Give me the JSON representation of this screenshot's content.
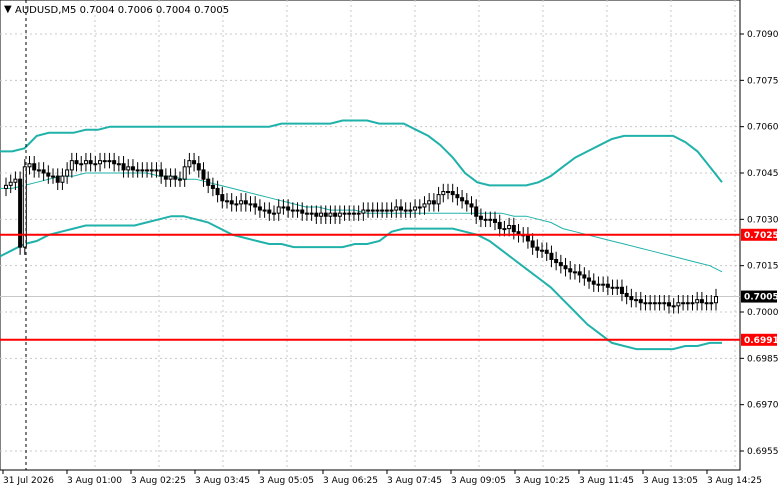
{
  "header": {
    "symbol_line": "AUDUSD,M5  0.7004 0.7006 0.7004 0.7005"
  },
  "colors": {
    "background": "#ffffff",
    "grid": "#c8c8c8",
    "band": "#20b2aa",
    "level": "#ff0000",
    "candle": "#000000",
    "price_tag_bg": "#000000",
    "price_tag_fg": "#ffffff",
    "level_tag_bg": "#ff0000",
    "level_tag_fg": "#ffffff"
  },
  "chart_data": {
    "type": "candlestick",
    "symbol": "AUDUSD",
    "timeframe": "M5",
    "ohlc_header": {
      "open": 0.7004,
      "high": 0.7006,
      "low": 0.7004,
      "close": 0.7005
    },
    "grid": true,
    "ylim": [
      0.694,
      0.71
    ],
    "y_ticks": [
      "0.7090",
      "0.7075",
      "0.7060",
      "0.7045",
      "0.7030",
      "0.7015",
      "0.7000",
      "0.6985",
      "0.6970",
      "0.6955"
    ],
    "x_ticks": [
      "31 Jul 2026",
      "3 Aug 01:00",
      "3 Aug 02:25",
      "3 Aug 03:45",
      "3 Aug 05:05",
      "3 Aug 06:25",
      "3 Aug 07:45",
      "3 Aug 09:05",
      "3 Aug 10:25",
      "3 Aug 11:45",
      "3 Aug 13:05",
      "3 Aug 14:25"
    ],
    "current_price": "0.7005",
    "horizontal_levels": [
      {
        "price": 0.7025,
        "label": "0.7025"
      },
      {
        "price": 0.6991,
        "label": "0.6991"
      }
    ],
    "close_series": [
      0.7041,
      0.7042,
      0.7043,
      0.7021,
      0.7047,
      0.7048,
      0.7046,
      0.7046,
      0.7045,
      0.7044,
      0.7044,
      0.7042,
      0.7044,
      0.7046,
      0.7049,
      0.7048,
      0.7048,
      0.7049,
      0.7048,
      0.7048,
      0.7049,
      0.7049,
      0.7049,
      0.7048,
      0.7048,
      0.7046,
      0.7047,
      0.7046,
      0.7046,
      0.7046,
      0.7046,
      0.7046,
      0.7046,
      0.7044,
      0.7043,
      0.7044,
      0.7043,
      0.7043,
      0.7047,
      0.7049,
      0.7048,
      0.7046,
      0.7043,
      0.7041,
      0.704,
      0.7038,
      0.7036,
      0.7036,
      0.7035,
      0.7035,
      0.7036,
      0.7035,
      0.7035,
      0.7034,
      0.7033,
      0.7033,
      0.7032,
      0.7032,
      0.7034,
      0.7034,
      0.7033,
      0.7033,
      0.7033,
      0.7032,
      0.7032,
      0.7032,
      0.7031,
      0.7032,
      0.7031,
      0.7032,
      0.7031,
      0.7032,
      0.7032,
      0.7032,
      0.7032,
      0.7032,
      0.7033,
      0.7033,
      0.7033,
      0.7033,
      0.7033,
      0.7033,
      0.7033,
      0.7034,
      0.7033,
      0.7033,
      0.7033,
      0.7034,
      0.7034,
      0.7035,
      0.7036,
      0.7035,
      0.7038,
      0.7039,
      0.7039,
      0.7038,
      0.7037,
      0.7036,
      0.7035,
      0.7034,
      0.7031,
      0.703,
      0.703,
      0.703,
      0.7029,
      0.7027,
      0.7027,
      0.7028,
      0.7026,
      0.7025,
      0.7025,
      0.7023,
      0.7021,
      0.702,
      0.702,
      0.7019,
      0.7017,
      0.7016,
      0.7015,
      0.7014,
      0.7013,
      0.7013,
      0.7012,
      0.7011,
      0.701,
      0.7009,
      0.7009,
      0.7009,
      0.7008,
      0.7008,
      0.7008,
      0.7006,
      0.7005,
      0.7004,
      0.7004,
      0.7003,
      0.7003,
      0.7003,
      0.7003,
      0.7003,
      0.7003,
      0.7002,
      0.7002,
      0.7003,
      0.7003,
      0.7003,
      0.7003,
      0.7004,
      0.7003,
      0.7003,
      0.7003,
      0.7005
    ],
    "bands": {
      "upper": [
        0.7052,
        0.7052,
        0.7053,
        0.7057,
        0.7058,
        0.7058,
        0.7058,
        0.7059,
        0.7059,
        0.706,
        0.706,
        0.706,
        0.706,
        0.706,
        0.706,
        0.706,
        0.706,
        0.706,
        0.706,
        0.706,
        0.706,
        0.706,
        0.706,
        0.7061,
        0.7061,
        0.7061,
        0.7061,
        0.7061,
        0.7062,
        0.7062,
        0.7062,
        0.7061,
        0.7061,
        0.7061,
        0.7059,
        0.7057,
        0.7054,
        0.705,
        0.7045,
        0.7042,
        0.7041,
        0.7041,
        0.7041,
        0.7041,
        0.7042,
        0.7044,
        0.7047,
        0.705,
        0.7052,
        0.7054,
        0.7056,
        0.7057,
        0.7057,
        0.7057,
        0.7057,
        0.7057,
        0.7055,
        0.7052,
        0.7047,
        0.7042
      ],
      "middle": [
        0.704,
        0.704,
        0.7041,
        0.7042,
        0.7043,
        0.7044,
        0.7044,
        0.7045,
        0.7045,
        0.7045,
        0.7045,
        0.7045,
        0.7045,
        0.7044,
        0.7044,
        0.7043,
        0.7043,
        0.7042,
        0.7041,
        0.704,
        0.7039,
        0.7038,
        0.7037,
        0.7036,
        0.7035,
        0.7034,
        0.7034,
        0.7033,
        0.7033,
        0.7033,
        0.7032,
        0.7032,
        0.7032,
        0.7032,
        0.7032,
        0.7032,
        0.7032,
        0.7032,
        0.7032,
        0.7032,
        0.7032,
        0.7032,
        0.7031,
        0.7031,
        0.703,
        0.7029,
        0.7027,
        0.7026,
        0.7025,
        0.7024,
        0.7023,
        0.7022,
        0.7021,
        0.702,
        0.7019,
        0.7018,
        0.7017,
        0.7016,
        0.7015,
        0.7013
      ],
      "lower": [
        0.7018,
        0.702,
        0.7022,
        0.7023,
        0.7025,
        0.7026,
        0.7027,
        0.7028,
        0.7028,
        0.7028,
        0.7028,
        0.7028,
        0.7029,
        0.703,
        0.7031,
        0.7031,
        0.703,
        0.7029,
        0.7027,
        0.7025,
        0.7024,
        0.7023,
        0.7022,
        0.7022,
        0.7021,
        0.7021,
        0.7021,
        0.7021,
        0.7021,
        0.7022,
        0.7022,
        0.7023,
        0.7026,
        0.7027,
        0.7027,
        0.7027,
        0.7027,
        0.7027,
        0.7026,
        0.7025,
        0.7023,
        0.702,
        0.7017,
        0.7014,
        0.7011,
        0.7008,
        0.7004,
        0.7,
        0.6996,
        0.6993,
        0.699,
        0.6989,
        0.6988,
        0.6988,
        0.6988,
        0.6988,
        0.6989,
        0.6989,
        0.699,
        0.699
      ]
    }
  }
}
